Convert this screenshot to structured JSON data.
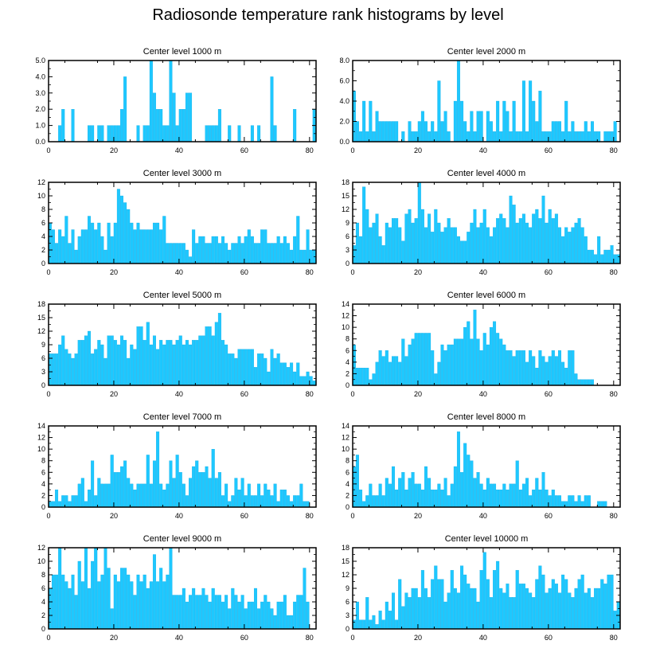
{
  "title": "Radiosonde temperature rank histograms by level",
  "colors": {
    "bar": "#1ec8ff",
    "bar_edge": "#0aa6e0",
    "axis": "#000000"
  },
  "chart_data": [
    {
      "type": "bar",
      "title": "Center level 1000 m",
      "xlim": [
        0,
        82
      ],
      "ylim": [
        0,
        5
      ],
      "xticks": [
        0,
        20,
        40,
        60,
        80
      ],
      "yticks": [
        "0.0",
        "1.0",
        "2.0",
        "3.0",
        "4.0",
        "5.0"
      ],
      "values": [
        0,
        0,
        0,
        1,
        2,
        0,
        0,
        2,
        0,
        0,
        0,
        0,
        1,
        1,
        0,
        1,
        1,
        0,
        1,
        1,
        1,
        1,
        2,
        4,
        0,
        0,
        0,
        1,
        0,
        1,
        1,
        5,
        3,
        2,
        2,
        1,
        1,
        5,
        3,
        1,
        2,
        2,
        3,
        3,
        0,
        0,
        0,
        0,
        1,
        1,
        1,
        1,
        2,
        0,
        0,
        1,
        0,
        0,
        1,
        0,
        0,
        0,
        1,
        0,
        1,
        0,
        0,
        0,
        4,
        1,
        0,
        0,
        0,
        0,
        0,
        2,
        0,
        0,
        0,
        0,
        0,
        2
      ]
    },
    {
      "type": "bar",
      "title": "Center level 2000 m",
      "xlim": [
        0,
        82
      ],
      "ylim": [
        0,
        8
      ],
      "xticks": [
        0,
        20,
        40,
        60,
        80
      ],
      "yticks": [
        "0.0",
        "2.0",
        "4.0",
        "6.0",
        "8.0"
      ],
      "values": [
        5,
        2,
        1,
        4,
        1,
        4,
        1,
        3,
        2,
        2,
        2,
        2,
        2,
        2,
        0,
        1,
        0,
        2,
        1,
        1,
        2,
        3,
        2,
        1,
        2,
        1,
        6,
        2,
        3,
        1,
        0,
        4,
        8,
        4,
        2,
        1,
        3,
        1,
        3,
        3,
        0,
        3,
        2,
        1,
        4,
        1,
        4,
        3,
        1,
        4,
        1,
        1,
        6,
        1,
        6,
        4,
        2,
        5,
        1,
        1,
        1,
        2,
        2,
        2,
        1,
        4,
        1,
        2,
        1,
        1,
        1,
        2,
        1,
        2,
        1,
        1,
        0,
        1,
        1,
        1,
        2,
        0
      ]
    },
    {
      "type": "bar",
      "title": "Center level 3000 m",
      "xlim": [
        0,
        82
      ],
      "ylim": [
        0,
        12
      ],
      "xticks": [
        0,
        20,
        40,
        60,
        80
      ],
      "yticks": [
        "0",
        "2",
        "4",
        "6",
        "8",
        "10",
        "12"
      ],
      "values": [
        6,
        5,
        3,
        5,
        4,
        7,
        3,
        5,
        2,
        4,
        5,
        5,
        7,
        6,
        5,
        6,
        4,
        2,
        6,
        4,
        6,
        11,
        10,
        9,
        8,
        6,
        5,
        6,
        5,
        5,
        5,
        5,
        6,
        6,
        5,
        7,
        3,
        3,
        3,
        3,
        3,
        3,
        2,
        1,
        5,
        3,
        4,
        4,
        3,
        3,
        4,
        4,
        3,
        4,
        3,
        2,
        3,
        3,
        4,
        3,
        4,
        5,
        4,
        3,
        3,
        5,
        5,
        3,
        3,
        3,
        4,
        3,
        4,
        3,
        2,
        4,
        7,
        2,
        2,
        5,
        2,
        2
      ]
    },
    {
      "type": "bar",
      "title": "Center level 4000 m",
      "xlim": [
        0,
        82
      ],
      "ylim": [
        0,
        18
      ],
      "xticks": [
        0,
        20,
        40,
        60,
        80
      ],
      "yticks": [
        "0",
        "3",
        "6",
        "9",
        "12",
        "15",
        "18"
      ],
      "values": [
        4,
        9,
        6,
        17,
        12,
        8,
        9,
        11,
        6,
        4,
        9,
        8,
        10,
        10,
        8,
        5,
        11,
        12,
        9,
        10,
        18,
        12,
        8,
        11,
        7,
        12,
        9,
        7,
        8,
        10,
        8,
        8,
        6,
        5,
        5,
        7,
        9,
        12,
        8,
        9,
        12,
        8,
        6,
        8,
        10,
        11,
        10,
        8,
        15,
        13,
        9,
        10,
        11,
        9,
        8,
        11,
        12,
        10,
        15,
        9,
        12,
        10,
        11,
        8,
        6,
        8,
        7,
        8,
        9,
        10,
        8,
        6,
        3,
        3,
        2,
        6,
        2,
        3,
        3,
        4,
        2,
        2
      ]
    },
    {
      "type": "bar",
      "title": "Center level 5000 m",
      "xlim": [
        0,
        82
      ],
      "ylim": [
        0,
        18
      ],
      "xticks": [
        0,
        20,
        40,
        60,
        80
      ],
      "yticks": [
        "0",
        "3",
        "6",
        "9",
        "12",
        "15",
        "18"
      ],
      "values": [
        7,
        7,
        7,
        9,
        11,
        8,
        7,
        6,
        7,
        10,
        10,
        11,
        12,
        7,
        8,
        10,
        9,
        6,
        11,
        11,
        10,
        9,
        11,
        10,
        6,
        9,
        8,
        13,
        13,
        10,
        14,
        9,
        11,
        8,
        10,
        9,
        10,
        10,
        9,
        10,
        11,
        9,
        10,
        9,
        10,
        10,
        11,
        11,
        13,
        13,
        11,
        14,
        16,
        10,
        9,
        7,
        7,
        6,
        8,
        8,
        8,
        8,
        8,
        4,
        7,
        7,
        6,
        3,
        8,
        6,
        7,
        5,
        5,
        4,
        5,
        3,
        5,
        2,
        2,
        3,
        2,
        1
      ]
    },
    {
      "type": "bar",
      "title": "Center level 6000 m",
      "xlim": [
        0,
        82
      ],
      "ylim": [
        0,
        14
      ],
      "xticks": [
        0,
        20,
        40,
        60,
        80
      ],
      "yticks": [
        "0",
        "2",
        "4",
        "6",
        "8",
        "10",
        "12",
        "14"
      ],
      "values": [
        7,
        3,
        3,
        3,
        3,
        1,
        2,
        4,
        6,
        5,
        6,
        4,
        5,
        5,
        4,
        8,
        5,
        7,
        8,
        9,
        9,
        9,
        9,
        9,
        6,
        2,
        4,
        7,
        6,
        7,
        7,
        8,
        8,
        8,
        10,
        11,
        8,
        13,
        8,
        6,
        9,
        7,
        10,
        11,
        9,
        8,
        7,
        6,
        6,
        5,
        6,
        6,
        6,
        4,
        6,
        5,
        3,
        6,
        5,
        4,
        5,
        6,
        5,
        6,
        4,
        3,
        6,
        6,
        2,
        1,
        1,
        1,
        1,
        1
      ]
    },
    {
      "type": "bar",
      "title": "Center level 7000 m",
      "xlim": [
        0,
        82
      ],
      "ylim": [
        0,
        14
      ],
      "xticks": [
        0,
        20,
        40,
        60,
        80
      ],
      "yticks": [
        "0",
        "2",
        "4",
        "6",
        "8",
        "10",
        "12",
        "14"
      ],
      "values": [
        1,
        1,
        3,
        1,
        2,
        2,
        1,
        2,
        2,
        4,
        5,
        1,
        3,
        8,
        2,
        5,
        4,
        4,
        4,
        9,
        6,
        6,
        7,
        8,
        5,
        4,
        3,
        4,
        4,
        4,
        9,
        4,
        8,
        13,
        4,
        3,
        4,
        8,
        5,
        9,
        6,
        4,
        2,
        5,
        7,
        8,
        6,
        6,
        7,
        5,
        10,
        5,
        6,
        2,
        4,
        1,
        2,
        5,
        3,
        5,
        2,
        4,
        2,
        2,
        4,
        2,
        4,
        3,
        2,
        4,
        1,
        3,
        3,
        2,
        1,
        2,
        2,
        4,
        1,
        1,
        0,
        0
      ]
    },
    {
      "type": "bar",
      "title": "Center level 8000 m",
      "xlim": [
        0,
        82
      ],
      "ylim": [
        0,
        14
      ],
      "xticks": [
        0,
        20,
        40,
        60,
        80
      ],
      "yticks": [
        "0",
        "2",
        "4",
        "6",
        "8",
        "10",
        "12",
        "14"
      ],
      "values": [
        7,
        9,
        3,
        1,
        2,
        4,
        2,
        2,
        4,
        2,
        5,
        4,
        7,
        3,
        5,
        6,
        3,
        5,
        6,
        4,
        4,
        3,
        7,
        5,
        3,
        3,
        4,
        3,
        5,
        2,
        4,
        7,
        13,
        6,
        11,
        9,
        8,
        5,
        6,
        4,
        3,
        5,
        4,
        4,
        3,
        3,
        4,
        3,
        4,
        4,
        8,
        3,
        4,
        5,
        2,
        3,
        5,
        3,
        6,
        3,
        2,
        3,
        2,
        2,
        1,
        1,
        2,
        2,
        1,
        2,
        1,
        2,
        2,
        0,
        0,
        1,
        1,
        1,
        0,
        0,
        0,
        0
      ]
    },
    {
      "type": "bar",
      "title": "Center level 9000 m",
      "xlim": [
        0,
        82
      ],
      "ylim": [
        0,
        12
      ],
      "xticks": [
        0,
        20,
        40,
        60,
        80
      ],
      "yticks": [
        "0",
        "2",
        "4",
        "6",
        "8",
        "10",
        "12"
      ],
      "values": [
        6,
        8,
        8,
        12,
        8,
        7,
        6,
        8,
        5,
        10,
        7,
        12,
        6,
        10,
        12,
        7,
        8,
        12,
        9,
        3,
        8,
        7,
        9,
        9,
        8,
        7,
        5,
        8,
        7,
        8,
        6,
        7,
        11,
        7,
        9,
        7,
        8,
        12,
        5,
        5,
        5,
        6,
        4,
        5,
        6,
        5,
        5,
        6,
        5,
        4,
        6,
        5,
        5,
        4,
        5,
        3,
        6,
        5,
        4,
        5,
        3,
        4,
        4,
        6,
        3,
        4,
        5,
        4,
        3,
        2,
        4,
        4,
        5,
        2,
        2,
        4,
        5,
        5,
        9,
        4,
        0,
        0
      ]
    },
    {
      "type": "bar",
      "title": "Center level 10000 m",
      "xlim": [
        0,
        82
      ],
      "ylim": [
        0,
        18
      ],
      "xticks": [
        0,
        20,
        40,
        60,
        80
      ],
      "yticks": [
        "0",
        "3",
        "6",
        "9",
        "12",
        "15",
        "18"
      ],
      "values": [
        2,
        6,
        2,
        2,
        7,
        2,
        3,
        1,
        4,
        2,
        6,
        4,
        8,
        2,
        11,
        5,
        8,
        7,
        9,
        9,
        7,
        13,
        9,
        7,
        11,
        14,
        11,
        11,
        6,
        8,
        13,
        9,
        8,
        14,
        12,
        10,
        9,
        9,
        6,
        13,
        17,
        11,
        7,
        13,
        15,
        9,
        8,
        10,
        7,
        7,
        13,
        10,
        10,
        9,
        8,
        7,
        11,
        14,
        12,
        8,
        9,
        11,
        10,
        8,
        12,
        11,
        8,
        7,
        9,
        11,
        12,
        8,
        9,
        7,
        9,
        9,
        11,
        10,
        12,
        12,
        4,
        6
      ]
    }
  ]
}
